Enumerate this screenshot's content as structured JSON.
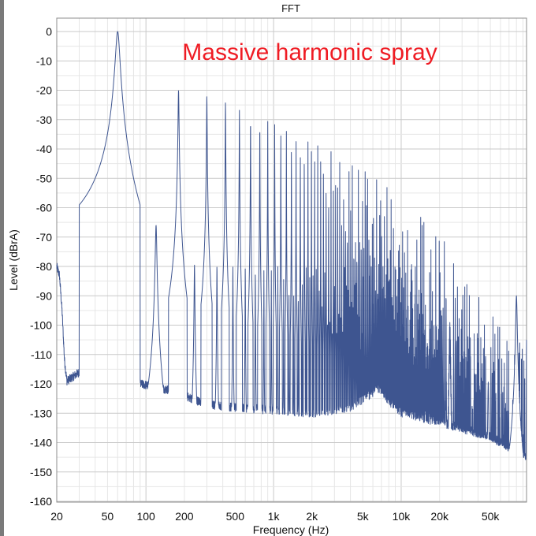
{
  "colors": {
    "series": "#3e5590",
    "annotation": "#ef1c24",
    "grid_major": "#c9c9c9",
    "grid_minor": "#e6e6e6",
    "axis": "#8c8c8c"
  },
  "chart_data": {
    "type": "line",
    "title": "FFT",
    "xlabel": "Frequency (Hz)",
    "ylabel": "Level (dBrA)",
    "annotation": "Massive harmonic spray",
    "x_scale": "log",
    "xlim": [
      20,
      96000
    ],
    "ylim": [
      -160,
      0
    ],
    "grid": true,
    "x_ticks": [
      {
        "value": 20,
        "label": "20"
      },
      {
        "value": 50,
        "label": "50"
      },
      {
        "value": 100,
        "label": "100"
      },
      {
        "value": 200,
        "label": "200"
      },
      {
        "value": 500,
        "label": "500"
      },
      {
        "value": 1000,
        "label": "1k"
      },
      {
        "value": 2000,
        "label": "2k"
      },
      {
        "value": 5000,
        "label": "5k"
      },
      {
        "value": 10000,
        "label": "10k"
      },
      {
        "value": 20000,
        "label": "20k"
      },
      {
        "value": 50000,
        "label": "50k"
      }
    ],
    "y_ticks": [
      {
        "value": 0,
        "label": "0"
      },
      {
        "value": -10,
        "label": "-10"
      },
      {
        "value": -20,
        "label": "-20"
      },
      {
        "value": -30,
        "label": "-30"
      },
      {
        "value": -40,
        "label": "-40"
      },
      {
        "value": -50,
        "label": "-50"
      },
      {
        "value": -60,
        "label": "-60"
      },
      {
        "value": -70,
        "label": "-70"
      },
      {
        "value": -80,
        "label": "-80"
      },
      {
        "value": -90,
        "label": "-90"
      },
      {
        "value": -100,
        "label": "-100"
      },
      {
        "value": -110,
        "label": "-110"
      },
      {
        "value": -120,
        "label": "-120"
      },
      {
        "value": -130,
        "label": "-130"
      },
      {
        "value": -140,
        "label": "-140"
      },
      {
        "value": -150,
        "label": "-150"
      },
      {
        "value": -160,
        "label": "-160"
      }
    ],
    "series": [
      {
        "fundamental_hz": 60,
        "fundamental_db": 0,
        "noise_floor": [
          [
            20,
            -80
          ],
          [
            21,
            -83
          ],
          [
            22,
            -95
          ],
          [
            23,
            -112
          ],
          [
            24,
            -119
          ],
          [
            26,
            -118
          ],
          [
            30,
            -116
          ],
          [
            35,
            -118
          ],
          [
            40,
            -121
          ],
          [
            50,
            -119
          ],
          [
            55,
            -117
          ],
          [
            70,
            -121
          ],
          [
            90,
            -120
          ],
          [
            150,
            -122
          ],
          [
            200,
            -124
          ],
          [
            300,
            -127
          ],
          [
            500,
            -128
          ],
          [
            1000,
            -129
          ],
          [
            2000,
            -130
          ],
          [
            4000,
            -128
          ],
          [
            6000,
            -123
          ],
          [
            6500,
            -121
          ],
          [
            8000,
            -126
          ],
          [
            10000,
            -130
          ],
          [
            20000,
            -133
          ],
          [
            50000,
            -138
          ],
          [
            96000,
            -145
          ]
        ],
        "harmonic_envelope": [
          [
            60,
            0
          ],
          [
            120,
            -68
          ],
          [
            180,
            -20
          ],
          [
            240,
            -79
          ],
          [
            300,
            -22
          ],
          [
            420,
            -24
          ],
          [
            600,
            -28
          ],
          [
            1000,
            -31
          ],
          [
            2000,
            -37
          ],
          [
            5000,
            -47
          ],
          [
            10000,
            -56
          ],
          [
            20000,
            -69
          ],
          [
            40000,
            -88
          ],
          [
            96000,
            -110
          ]
        ],
        "even_harmonic_level": [
          [
            100,
            -79
          ],
          [
            1000,
            -80
          ],
          [
            8000,
            -80
          ],
          [
            20000,
            -82
          ],
          [
            96000,
            -105
          ]
        ],
        "spurs": [
          {
            "x": 120,
            "y": -66
          },
          {
            "x": 80000,
            "y": -90
          }
        ]
      }
    ]
  }
}
